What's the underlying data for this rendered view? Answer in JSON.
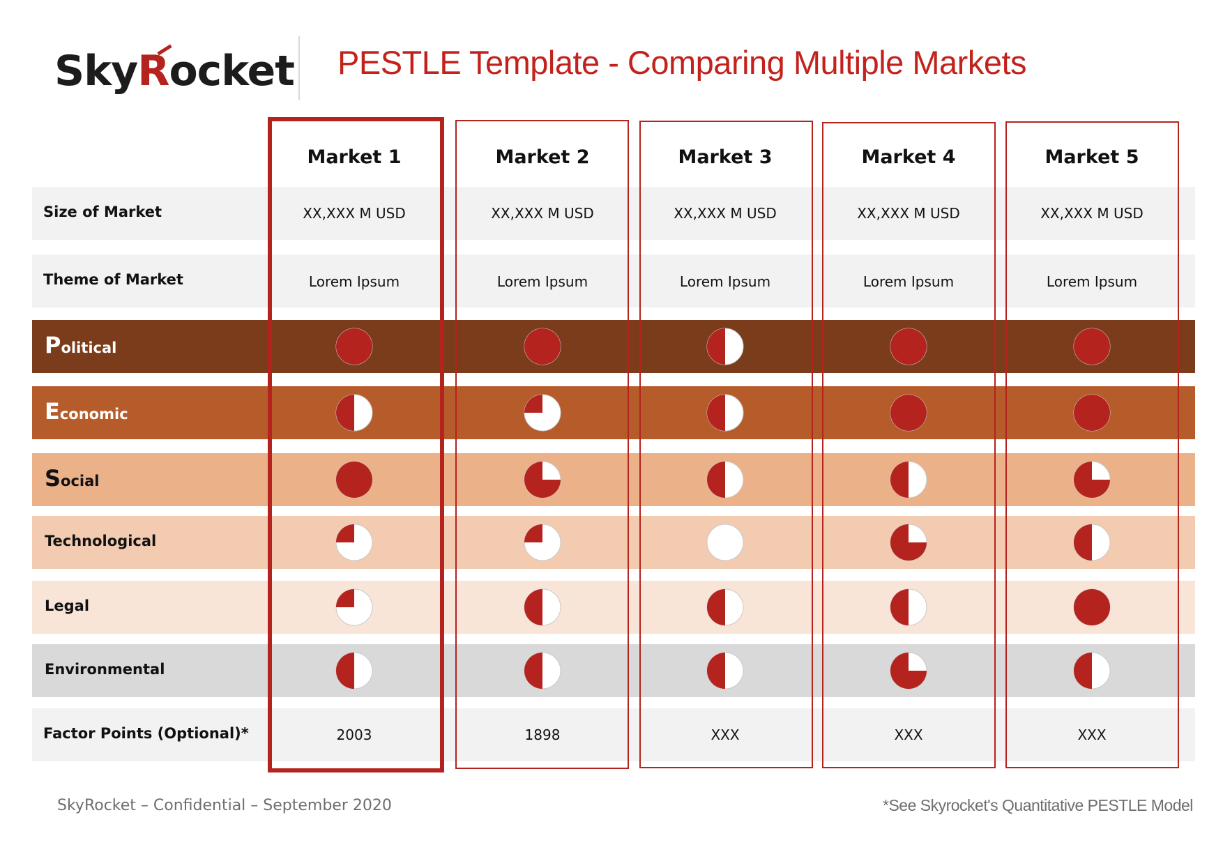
{
  "header": {
    "logo_part1": "Sky",
    "logo_r": "R",
    "logo_part2": "ocket",
    "title": "PESTLE Template - Comparing Multiple Markets"
  },
  "markets": [
    {
      "name": "Market 1",
      "size": "XX,XXX M USD",
      "theme": "Lorem Ipsum",
      "points": "2003",
      "selected": true
    },
    {
      "name": "Market 2",
      "size": "XX,XXX M USD",
      "theme": "Lorem Ipsum",
      "points": "1898",
      "selected": false
    },
    {
      "name": "Market 3",
      "size": "XX,XXX M USD",
      "theme": "Lorem Ipsum",
      "points": "XXX",
      "selected": false
    },
    {
      "name": "Market 4",
      "size": "XX,XXX M USD",
      "theme": "Lorem Ipsum",
      "points": "XXX",
      "selected": false
    },
    {
      "name": "Market 5",
      "size": "XX,XXX M USD",
      "theme": "Lorem Ipsum",
      "points": "XXX",
      "selected": false
    }
  ],
  "rows": {
    "size_label": "Size of Market",
    "theme_label": "Theme of Market",
    "points_label": "Factor Points (Optional)*"
  },
  "factors": [
    {
      "initial": "P",
      "rest": "olitical",
      "color": "#7b3c1b",
      "light_text": true,
      "fill": [
        1,
        1,
        0.5,
        1,
        1
      ]
    },
    {
      "initial": "E",
      "rest": "conomic",
      "color": "#b65b2a",
      "light_text": true,
      "fill": [
        0.5,
        0.25,
        0.5,
        1,
        1
      ]
    },
    {
      "initial": "S",
      "rest": "ocial",
      "color": "#ebb189",
      "light_text": false,
      "fill": [
        1,
        0.75,
        0.5,
        0.5,
        0.75
      ]
    },
    {
      "initial": "",
      "rest": "Technological",
      "color": "#f2cbb0",
      "light_text": false,
      "fill": [
        0.25,
        0.25,
        0,
        0.75,
        0.5
      ]
    },
    {
      "initial": "",
      "rest": "Legal",
      "color": "#f8e5d8",
      "light_text": false,
      "fill": [
        0.25,
        0.5,
        0.5,
        0.5,
        1
      ]
    },
    {
      "initial": "",
      "rest": "Environmental",
      "color": "#d9d9d9",
      "light_text": false,
      "fill": [
        0.5,
        0.5,
        0.5,
        0.75,
        0.5
      ]
    }
  ],
  "colors": {
    "accent": "#b5231e",
    "neutral_row": "#f2f2f2"
  },
  "footer": {
    "left": "SkyRocket – Confidential – September 2020",
    "right": "*See Skyrocket's Quantitative PESTLE Model"
  }
}
